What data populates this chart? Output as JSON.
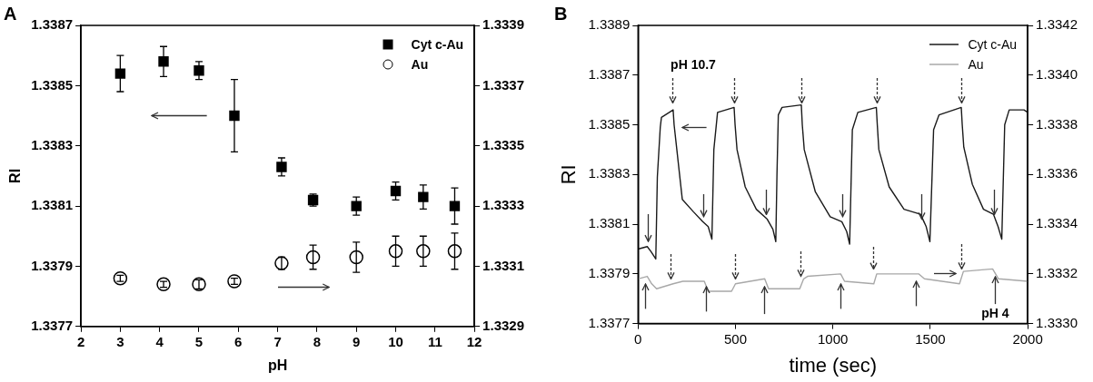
{
  "chart_data": [
    {
      "type": "scatter",
      "title": "A",
      "xlabel": "pH",
      "ylabel": "RI",
      "xlim": [
        2,
        12
      ],
      "xticks": [
        2,
        3,
        4,
        5,
        6,
        7,
        8,
        9,
        10,
        11,
        12
      ],
      "ylim": [
        1.3377,
        1.3387
      ],
      "yticks": [
        1.3377,
        1.3379,
        1.3381,
        1.3383,
        1.3385,
        1.3387
      ],
      "y2lim": [
        1.3329,
        1.3339
      ],
      "y2ticks": [
        1.3329,
        1.3331,
        1.3333,
        1.3335,
        1.3337,
        1.3339
      ],
      "legend": "top right",
      "grid": false,
      "x": [
        3,
        4.1,
        5,
        5.9,
        7.1,
        7.9,
        9,
        10,
        10.7,
        11.5
      ],
      "series": [
        {
          "name": "Cyt c-Au",
          "color": "#000000",
          "marker": "square",
          "values": [
            1.33854,
            1.33858,
            1.33855,
            1.3384,
            1.33823,
            1.33812,
            1.3381,
            1.33815,
            1.33813,
            1.3381
          ],
          "errors": [
            6e-05,
            5e-05,
            3e-05,
            0.00012,
            3e-05,
            2e-05,
            3e-05,
            3e-05,
            4e-05,
            6e-05
          ]
        },
        {
          "name": "Au",
          "color": "#000000",
          "marker": "circle",
          "axis": "y2",
          "values": [
            1.33306,
            1.33304,
            1.33304,
            1.33305,
            1.33311,
            1.33313,
            1.33313,
            1.33315,
            1.33315,
            1.33315
          ],
          "errors": [
            1e-05,
            1e-05,
            1.5e-05,
            1e-05,
            2e-05,
            4e-05,
            5e-05,
            5e-05,
            5e-05,
            6e-05
          ]
        }
      ]
    },
    {
      "type": "line",
      "title": "B",
      "xlabel": "time (sec)",
      "ylabel": "RI",
      "xlim": [
        0,
        2000
      ],
      "xticks": [
        0,
        500,
        1000,
        1500,
        2000
      ],
      "ylim": [
        1.3377,
        1.3389
      ],
      "yticks": [
        1.3377,
        1.3379,
        1.3381,
        1.3383,
        1.3385,
        1.3387,
        1.3389
      ],
      "y2lim": [
        1.333,
        1.3342
      ],
      "y2ticks": [
        {
          "value": 1.333,
          "label": "1.3330"
        },
        1.3332,
        1.3334,
        1.3336,
        1.3338,
        {
          "value": 1.334,
          "label": "1.3340"
        },
        1.3342
      ],
      "legend": "top right",
      "grid": false,
      "marker": "none",
      "annotations": [
        "pH 10.7",
        "pH 4"
      ],
      "series": [
        {
          "name": "Cyt c-Au",
          "color": "#1a1a1a",
          "x": [
            0,
            47,
            66,
            91,
            99,
            114,
            120,
            180,
            185,
            199,
            227,
            284,
            332,
            360,
            379,
            389,
            408,
            493,
            498,
            508,
            550,
            607,
            663,
            692,
            707,
            713,
            720,
            739,
            838,
            843,
            853,
            910,
            986,
            1046,
            1071,
            1086,
            1100,
            1128,
            1223,
            1228,
            1236,
            1289,
            1365,
            1450,
            1479,
            1498,
            1517,
            1545,
            1659,
            1664,
            1672,
            1716,
            1773,
            1824,
            1848,
            1867,
            1882,
            1905,
            1981,
            2000
          ],
          "values": [
            1.338,
            1.33801,
            1.33799,
            1.33796,
            1.33829,
            1.33849,
            1.33853,
            1.33856,
            1.3385,
            1.3384,
            1.3382,
            1.33815,
            1.33811,
            1.33809,
            1.33804,
            1.3384,
            1.33855,
            1.33857,
            1.3385,
            1.3384,
            1.33825,
            1.33816,
            1.33812,
            1.33808,
            1.33803,
            1.3383,
            1.33854,
            1.33857,
            1.33858,
            1.3385,
            1.3384,
            1.33823,
            1.33813,
            1.33811,
            1.33807,
            1.33802,
            1.33848,
            1.33855,
            1.33857,
            1.3385,
            1.3384,
            1.33825,
            1.33816,
            1.33814,
            1.33809,
            1.33803,
            1.33848,
            1.33854,
            1.33857,
            1.3385,
            1.33841,
            1.33826,
            1.33816,
            1.33814,
            1.33809,
            1.33804,
            1.3385,
            1.33856,
            1.33856,
            1.33855
          ]
        },
        {
          "name": "Au",
          "color": "#a8a8a8",
          "axis": "y2",
          "x": [
            0,
            47,
            70,
            95,
            180,
            230,
            340,
            360,
            480,
            500,
            650,
            670,
            830,
            850,
            870,
            1040,
            1060,
            1210,
            1225,
            1440,
            1470,
            1650,
            1670,
            1820,
            1850,
            2000
          ],
          "values": [
            1.33318,
            1.33319,
            1.33316,
            1.33314,
            1.33316,
            1.33317,
            1.33317,
            1.33313,
            1.33313,
            1.33316,
            1.33318,
            1.33314,
            1.33314,
            1.33318,
            1.33319,
            1.3332,
            1.33317,
            1.33316,
            1.3332,
            1.3332,
            1.33318,
            1.33316,
            1.33321,
            1.33322,
            1.33318,
            1.33317
          ]
        }
      ]
    }
  ]
}
